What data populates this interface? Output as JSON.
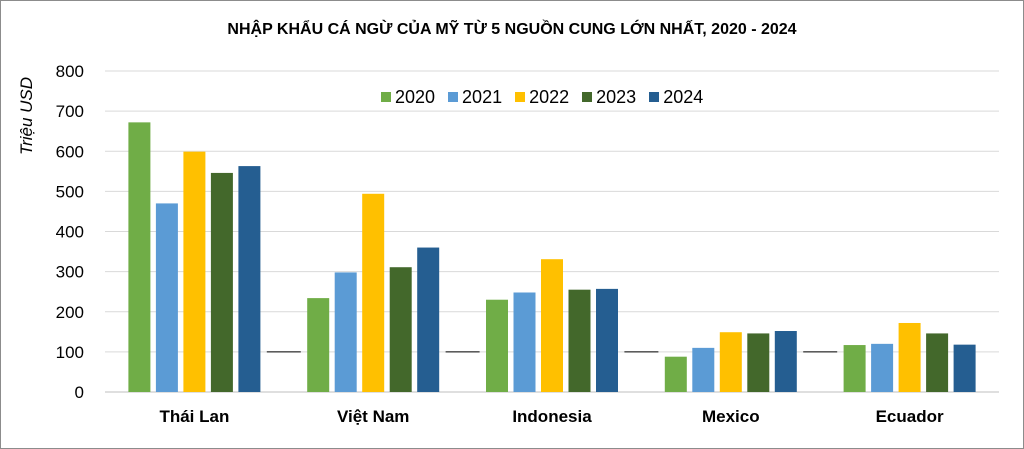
{
  "chart_data": {
    "type": "bar",
    "title": "NHẬP KHẨU CÁ NGỪ CỦA MỸ TỪ 5 NGUỒN CUNG LỚN NHẤT, 2020 - 2024",
    "xlabel": "",
    "ylabel": "Triệu USD",
    "ylim": [
      0,
      800
    ],
    "yticks": [
      0,
      100,
      200,
      300,
      400,
      500,
      600,
      700,
      800
    ],
    "grid": true,
    "legend_position": "top-center",
    "categories": [
      "Thái Lan",
      "Việt Nam",
      "Indonesia",
      "Mexico",
      "Ecuador"
    ],
    "series": [
      {
        "name": "2020",
        "color": "#70ad47",
        "values": [
          672,
          234,
          230,
          88,
          117
        ]
      },
      {
        "name": "2021",
        "color": "#5b9bd5",
        "values": [
          470,
          298,
          248,
          110,
          120
        ]
      },
      {
        "name": "2022",
        "color": "#ffc000",
        "values": [
          599,
          494,
          331,
          149,
          172
        ]
      },
      {
        "name": "2023",
        "color": "#43682b",
        "values": [
          546,
          311,
          255,
          146,
          146
        ]
      },
      {
        "name": "2024",
        "color": "#255e91",
        "values": [
          563,
          360,
          257,
          152,
          118
        ]
      }
    ]
  }
}
